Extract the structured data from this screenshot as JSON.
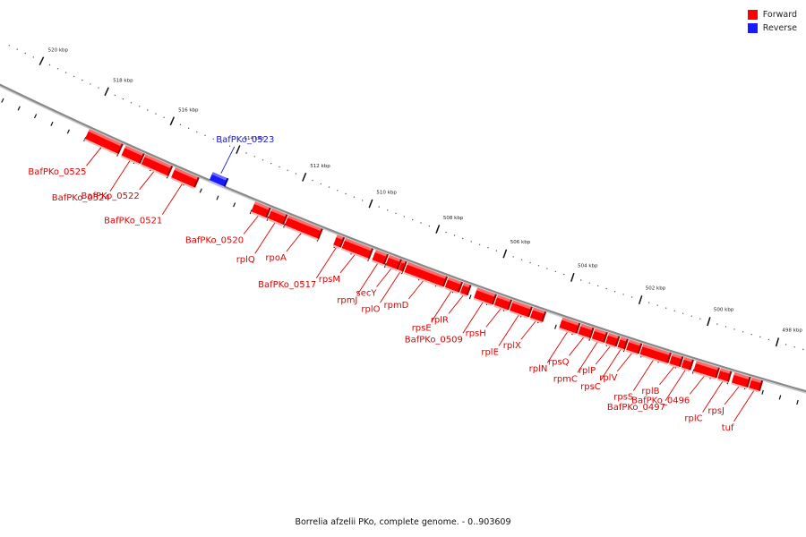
{
  "caption": "Borrelia afzelii PKo, complete genome. - 0..903609",
  "legend": [
    {
      "label": "Forward",
      "color": "#ff0000"
    },
    {
      "label": "Reverse",
      "color": "#1a1aff"
    }
  ],
  "colors": {
    "forward": "#ff0000",
    "forward_label": "#e00000",
    "reverse": "#1a1aff",
    "reverse_label": "#1a1acc",
    "backbone": "#888888"
  },
  "ruler": [
    {
      "kbp": 520,
      "label": "520 kbp"
    },
    {
      "kbp": 518,
      "label": "518 kbp"
    },
    {
      "kbp": 516,
      "label": "516 kbp"
    },
    {
      "kbp": 514,
      "label": "514 kbp"
    },
    {
      "kbp": 512,
      "label": "512 kbp"
    },
    {
      "kbp": 510,
      "label": "510 kbp"
    },
    {
      "kbp": 508,
      "label": "508 kbp"
    },
    {
      "kbp": 506,
      "label": "506 kbp"
    },
    {
      "kbp": 504,
      "label": "504 kbp"
    },
    {
      "kbp": 502,
      "label": "502 kbp"
    },
    {
      "kbp": 500,
      "label": "500 kbp"
    },
    {
      "kbp": 498,
      "label": "498 kbp"
    }
  ],
  "genes": [
    {
      "name": "BafPKo_0525",
      "strand": "forward",
      "start": 518.0,
      "end": 517.0
    },
    {
      "name": "BafPKo_0524",
      "strand": "forward",
      "start": 516.9,
      "end": 516.35
    },
    {
      "name": "BafPKo_0522",
      "strand": "forward",
      "start": 516.3,
      "end": 515.5
    },
    {
      "name": "BafPKo_0521",
      "strand": "forward",
      "start": 515.4,
      "end": 514.7
    },
    {
      "name": "BafPKo_0523",
      "strand": "reverse",
      "start": 514.4,
      "end": 513.95
    },
    {
      "name": "BafPKo_0520",
      "strand": "forward",
      "start": 513.0,
      "end": 512.55
    },
    {
      "name": "rplQ",
      "strand": "forward",
      "start": 512.5,
      "end": 512.05
    },
    {
      "name": "rpoA",
      "strand": "forward",
      "start": 512.0,
      "end": 511.0
    },
    {
      "name": "BafPKo_0517",
      "strand": "forward",
      "start": 510.55,
      "end": 510.35
    },
    {
      "name": "rpsM",
      "strand": "forward",
      "start": 510.3,
      "end": 509.5
    },
    {
      "name": "rpmJ",
      "strand": "forward",
      "start": 509.4,
      "end": 509.05
    },
    {
      "name": "secY",
      "strand": "forward",
      "start": 509.0,
      "end": 508.65
    },
    {
      "name": "rplO",
      "strand": "forward",
      "start": 508.62,
      "end": 508.5
    },
    {
      "name": "rpmD",
      "strand": "forward",
      "start": 508.45,
      "end": 507.3
    },
    {
      "name": "rpsE",
      "strand": "forward",
      "start": 507.25,
      "end": 506.85
    },
    {
      "name": "rplR",
      "strand": "forward",
      "start": 506.8,
      "end": 506.6
    },
    {
      "name": "BafPKo_0509",
      "strand": "forward",
      "start": 506.4,
      "end": 505.85
    },
    {
      "name": "rpsH",
      "strand": "forward",
      "start": 505.8,
      "end": 505.4
    },
    {
      "name": "rplE",
      "strand": "forward",
      "start": 505.35,
      "end": 504.8
    },
    {
      "name": "rplX",
      "strand": "forward",
      "start": 504.75,
      "end": 504.4
    },
    {
      "name": "rplN",
      "strand": "forward",
      "start": 503.9,
      "end": 503.4
    },
    {
      "name": "rpsQ",
      "strand": "forward",
      "start": 503.35,
      "end": 503.0
    },
    {
      "name": "rpmC",
      "strand": "forward",
      "start": 502.95,
      "end": 502.6
    },
    {
      "name": "rplP",
      "strand": "forward",
      "start": 502.55,
      "end": 502.25
    },
    {
      "name": "rpsC",
      "strand": "forward",
      "start": 502.2,
      "end": 502.0
    },
    {
      "name": "rplV",
      "strand": "forward",
      "start": 501.95,
      "end": 501.6
    },
    {
      "name": "rpsS",
      "strand": "forward",
      "start": 501.55,
      "end": 500.75
    },
    {
      "name": "rplB",
      "strand": "forward",
      "start": 500.7,
      "end": 500.4
    },
    {
      "name": "BafPKo_0497",
      "strand": "forward",
      "start": 500.35,
      "end": 500.1
    },
    {
      "name": "BafPKo_0496",
      "strand": "forward",
      "start": 500.0,
      "end": 499.35
    },
    {
      "name": "rplC",
      "strand": "forward",
      "start": 499.3,
      "end": 499.0
    },
    {
      "name": "rpsJ",
      "strand": "forward",
      "start": 498.9,
      "end": 498.45
    },
    {
      "name": "tuf",
      "strand": "forward",
      "start": 498.4,
      "end": 498.1
    }
  ]
}
